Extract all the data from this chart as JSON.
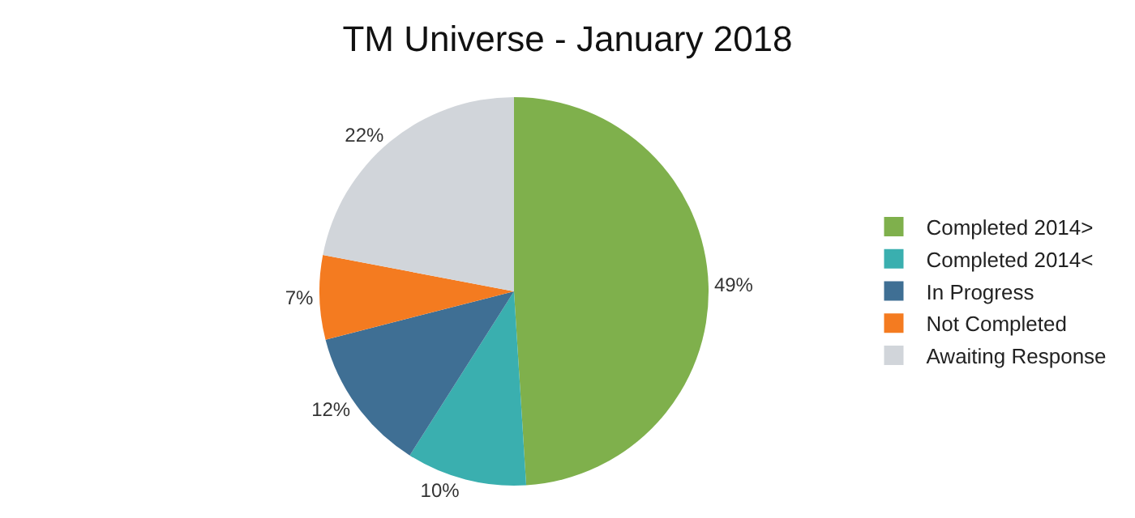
{
  "chart_data": {
    "type": "pie",
    "title": "TM Universe - January 2018",
    "categories": [
      "Completed 2014>",
      "Completed 2014<",
      "In Progress",
      "Not Completed",
      "Awaiting Response"
    ],
    "values": [
      49,
      10,
      12,
      7,
      22
    ],
    "value_labels": [
      "49%",
      "10%",
      "12%",
      "7%",
      "22%"
    ],
    "colors": [
      "#7fb04c",
      "#3aafaf",
      "#3f6f94",
      "#f47b20",
      "#d1d5da"
    ],
    "legend": "right"
  }
}
